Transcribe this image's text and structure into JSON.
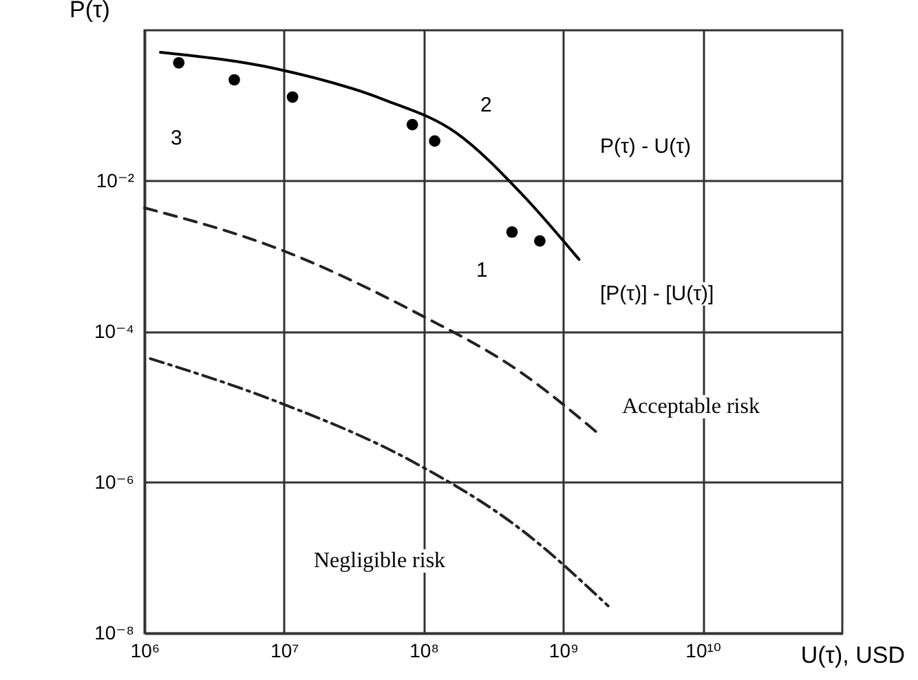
{
  "chart_data": {
    "type": "line",
    "xlabel": "U(τ), USD",
    "ylabel": "P(τ)",
    "log": "xy",
    "grid": true,
    "xlim": [
      1000000.0,
      100000000000.0
    ],
    "ylim": [
      1e-08,
      1
    ],
    "xticks": [
      {
        "value": 1000000.0,
        "label": "10⁶"
      },
      {
        "value": 10000000.0,
        "label": "10⁷"
      },
      {
        "value": 100000000.0,
        "label": "10⁸"
      },
      {
        "value": 1000000000.0,
        "label": "10⁹"
      },
      {
        "value": 10000000000.0,
        "label": "10¹⁰"
      }
    ],
    "yticks": [
      {
        "value": 1e-08,
        "label": "10⁻⁸"
      },
      {
        "value": 1e-06,
        "label": "10⁻⁶"
      },
      {
        "value": 0.0001,
        "label": "10⁻⁴"
      },
      {
        "value": 0.01,
        "label": "10⁻²"
      }
    ],
    "series": [
      {
        "type": "scatter",
        "marker": "circle",
        "color": "#000000",
        "x": [
          1760000.0,
          4400000.0,
          11500000.0,
          83000000.0,
          120000000.0,
          430000000.0,
          680000000.0
        ],
        "values": [
          0.37,
          0.22,
          0.13,
          0.056,
          0.034,
          0.0021,
          0.0016
        ]
      },
      {
        "type": "line",
        "line_style": "solid",
        "color": "#000000",
        "x": [
          1300000.0,
          8700000.0,
          52000000.0,
          170000000.0,
          510000000.0,
          1300000000.0
        ],
        "values": [
          0.51,
          0.31,
          0.12,
          0.044,
          0.0066,
          0.00091
        ]
      },
      {
        "type": "line",
        "line_style": "dashed",
        "color": "#222222",
        "x": [
          1000000.0,
          8700000.0,
          83000000.0,
          510000000.0,
          1800000000.0
        ],
        "values": [
          0.0044,
          0.0013,
          0.00019,
          2.8e-05,
          4.4e-06
        ]
      },
      {
        "type": "line",
        "line_style": "dashdot",
        "color": "#222222",
        "x": [
          1100000.0,
          8700000.0,
          83000000.0,
          510000000.0,
          2100000000.0
        ],
        "values": [
          4.4e-05,
          1.2e-05,
          1.9e-06,
          2.3e-07,
          2.3e-08
        ]
      }
    ],
    "annotations": [
      "3",
      "2",
      "1",
      "P(τ) - U(τ)",
      "[P(τ)] - [U(τ)]",
      "Acceptable risk",
      "Negligible risk"
    ]
  }
}
